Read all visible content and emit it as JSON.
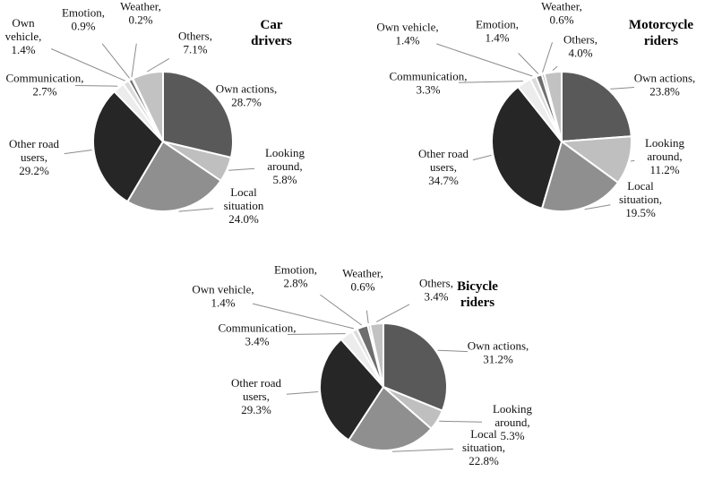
{
  "chart_data": [
    {
      "type": "pie",
      "title": "Car drivers",
      "categories": [
        "Own actions",
        "Looking around",
        "Local situation",
        "Other road users",
        "Communication",
        "Own vehicle",
        "Emotion",
        "Weather",
        "Others"
      ],
      "values": [
        28.7,
        5.8,
        24.0,
        29.2,
        2.7,
        1.4,
        0.9,
        0.2,
        7.1
      ],
      "labels": [
        "Own actions,|28.7%",
        "Looking|around,|5.8%",
        "Local|situation|24.0%",
        "Other road|users,|29.2%",
        "Communication,|2.7%",
        "Own|vehicle,|1.4%",
        "Emotion,|0.9%",
        "Weather,|0.2%",
        "Others,|7.1%"
      ]
    },
    {
      "type": "pie",
      "title": "Motorcycle riders",
      "categories": [
        "Own actions",
        "Looking around",
        "Local situation",
        "Other road users",
        "Communication",
        "Own vehicle",
        "Emotion",
        "Weather",
        "Others"
      ],
      "values": [
        23.8,
        11.2,
        19.5,
        34.7,
        3.3,
        1.4,
        1.4,
        0.6,
        4.0
      ],
      "labels": [
        "Own actions,|23.8%",
        "Looking|around,|11.2%",
        "Local|situation,|19.5%",
        "Other road|users,|34.7%",
        "Communication,|3.3%",
        "Own vehicle,|1.4%",
        "Emotion,|1.4%",
        "Weather,|0.6%",
        "Others,|4.0%"
      ]
    },
    {
      "type": "pie",
      "title": "Bicycle riders",
      "categories": [
        "Own actions",
        "Looking around",
        "Local situation",
        "Other road users",
        "Communication",
        "Own vehicle",
        "Emotion",
        "Weather",
        "Others"
      ],
      "values": [
        31.2,
        5.3,
        22.8,
        29.3,
        3.4,
        1.4,
        2.8,
        0.6,
        3.4
      ],
      "labels": [
        "Own actions,|31.2%",
        "Looking|around,|5.3%",
        "Local|situation,|22.8%",
        "Other road|users,|29.3%",
        "Communication,|3.4%",
        "Own vehicle,|1.4%",
        "Emotion,|2.8%",
        "Weather,|0.6%",
        "Others,|3.4%"
      ]
    }
  ],
  "colors": [
    "#595959",
    "#bfbfbf",
    "#8f8f8f",
    "#262626",
    "#ececec",
    "#dcdcdc",
    "#6e6e6e",
    "#a8a8a8",
    "#c2c2c2"
  ]
}
